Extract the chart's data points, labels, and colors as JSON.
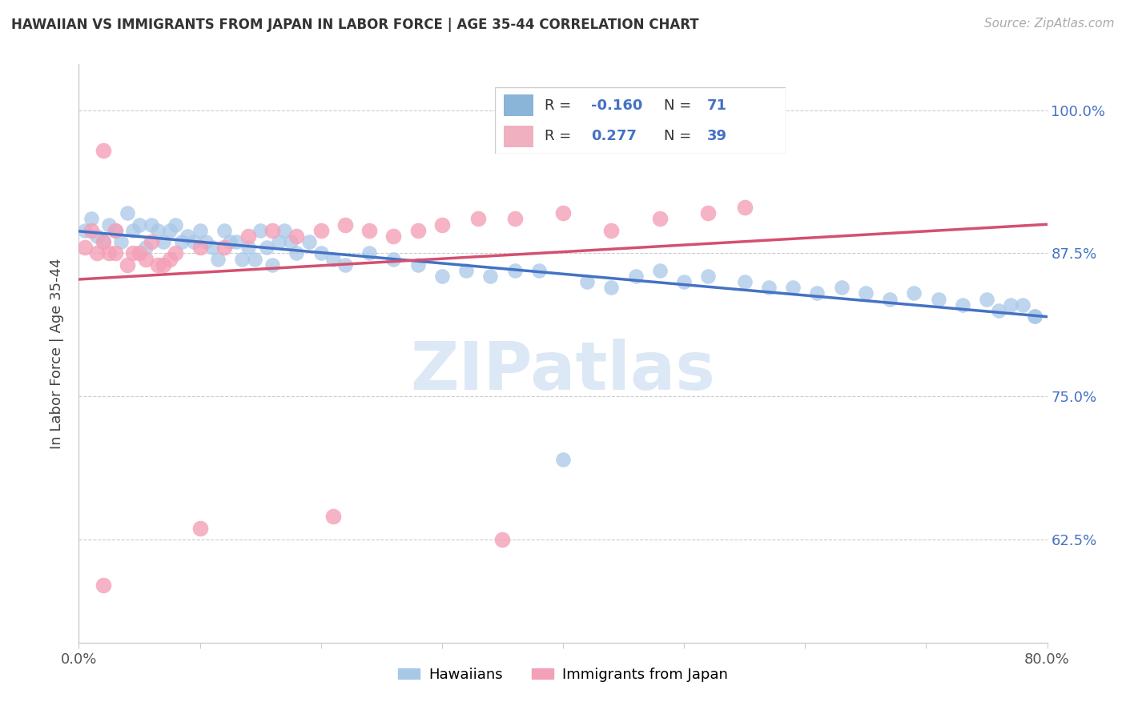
{
  "title": "HAWAIIAN VS IMMIGRANTS FROM JAPAN IN LABOR FORCE | AGE 35-44 CORRELATION CHART",
  "source": "Source: ZipAtlas.com",
  "ylabel": "In Labor Force | Age 35-44",
  "xlim": [
    0.0,
    0.8
  ],
  "ylim": [
    0.535,
    1.04
  ],
  "yticks": [
    0.625,
    0.75,
    0.875,
    1.0
  ],
  "ytick_labels": [
    "62.5%",
    "75.0%",
    "87.5%",
    "100.0%"
  ],
  "xticks": [
    0.0,
    0.1,
    0.2,
    0.3,
    0.4,
    0.5,
    0.6,
    0.7,
    0.8
  ],
  "xtick_labels": [
    "0.0%",
    "",
    "",
    "",
    "",
    "",
    "",
    "",
    "80.0%"
  ],
  "legend_R_blue": "-0.160",
  "legend_N_blue": "71",
  "legend_R_pink": "0.277",
  "legend_N_pink": "39",
  "blue_scatter_color": "#a8c8e8",
  "pink_scatter_color": "#f4a0b8",
  "blue_line_color": "#4472c4",
  "pink_line_color": "#d45070",
  "blue_legend_color": "#8ab4d8",
  "pink_legend_color": "#f0b0c0",
  "watermark_text": "ZIPatlas",
  "watermark_color": "#dce8f5",
  "hawaiians_x": [
    0.005,
    0.01,
    0.015,
    0.02,
    0.025,
    0.03,
    0.035,
    0.04,
    0.045,
    0.05,
    0.055,
    0.06,
    0.065,
    0.07,
    0.075,
    0.08,
    0.085,
    0.09,
    0.095,
    0.1,
    0.105,
    0.11,
    0.115,
    0.12,
    0.125,
    0.13,
    0.135,
    0.14,
    0.145,
    0.15,
    0.155,
    0.16,
    0.165,
    0.17,
    0.175,
    0.18,
    0.19,
    0.2,
    0.21,
    0.22,
    0.24,
    0.26,
    0.28,
    0.3,
    0.32,
    0.34,
    0.36,
    0.38,
    0.4,
    0.42,
    0.44,
    0.46,
    0.48,
    0.5,
    0.52,
    0.55,
    0.57,
    0.59,
    0.61,
    0.63,
    0.65,
    0.67,
    0.69,
    0.71,
    0.73,
    0.75,
    0.76,
    0.77,
    0.78,
    0.79,
    0.79
  ],
  "hawaiians_y": [
    0.895,
    0.905,
    0.89,
    0.885,
    0.9,
    0.895,
    0.885,
    0.91,
    0.895,
    0.9,
    0.88,
    0.9,
    0.895,
    0.885,
    0.895,
    0.9,
    0.885,
    0.89,
    0.885,
    0.895,
    0.885,
    0.88,
    0.87,
    0.895,
    0.885,
    0.885,
    0.87,
    0.88,
    0.87,
    0.895,
    0.88,
    0.865,
    0.885,
    0.895,
    0.885,
    0.875,
    0.885,
    0.875,
    0.87,
    0.865,
    0.875,
    0.87,
    0.865,
    0.855,
    0.86,
    0.855,
    0.86,
    0.86,
    0.695,
    0.85,
    0.845,
    0.855,
    0.86,
    0.85,
    0.855,
    0.85,
    0.845,
    0.845,
    0.84,
    0.845,
    0.84,
    0.835,
    0.84,
    0.835,
    0.83,
    0.835,
    0.825,
    0.83,
    0.83,
    0.82,
    0.82
  ],
  "japan_x": [
    0.005,
    0.01,
    0.015,
    0.02,
    0.025,
    0.03,
    0.03,
    0.04,
    0.045,
    0.05,
    0.055,
    0.06,
    0.065,
    0.07,
    0.075,
    0.08,
    0.1,
    0.12,
    0.14,
    0.16,
    0.18,
    0.2,
    0.22,
    0.24,
    0.26,
    0.28,
    0.3,
    0.33,
    0.36,
    0.4,
    0.44,
    0.48,
    0.52,
    0.55,
    0.1,
    0.21,
    0.35,
    0.02,
    0.02
  ],
  "japan_y": [
    0.88,
    0.895,
    0.875,
    0.885,
    0.875,
    0.875,
    0.895,
    0.865,
    0.875,
    0.875,
    0.87,
    0.885,
    0.865,
    0.865,
    0.87,
    0.875,
    0.88,
    0.88,
    0.89,
    0.895,
    0.89,
    0.895,
    0.9,
    0.895,
    0.89,
    0.895,
    0.9,
    0.905,
    0.905,
    0.91,
    0.895,
    0.905,
    0.91,
    0.915,
    0.635,
    0.645,
    0.625,
    0.965,
    0.585
  ]
}
